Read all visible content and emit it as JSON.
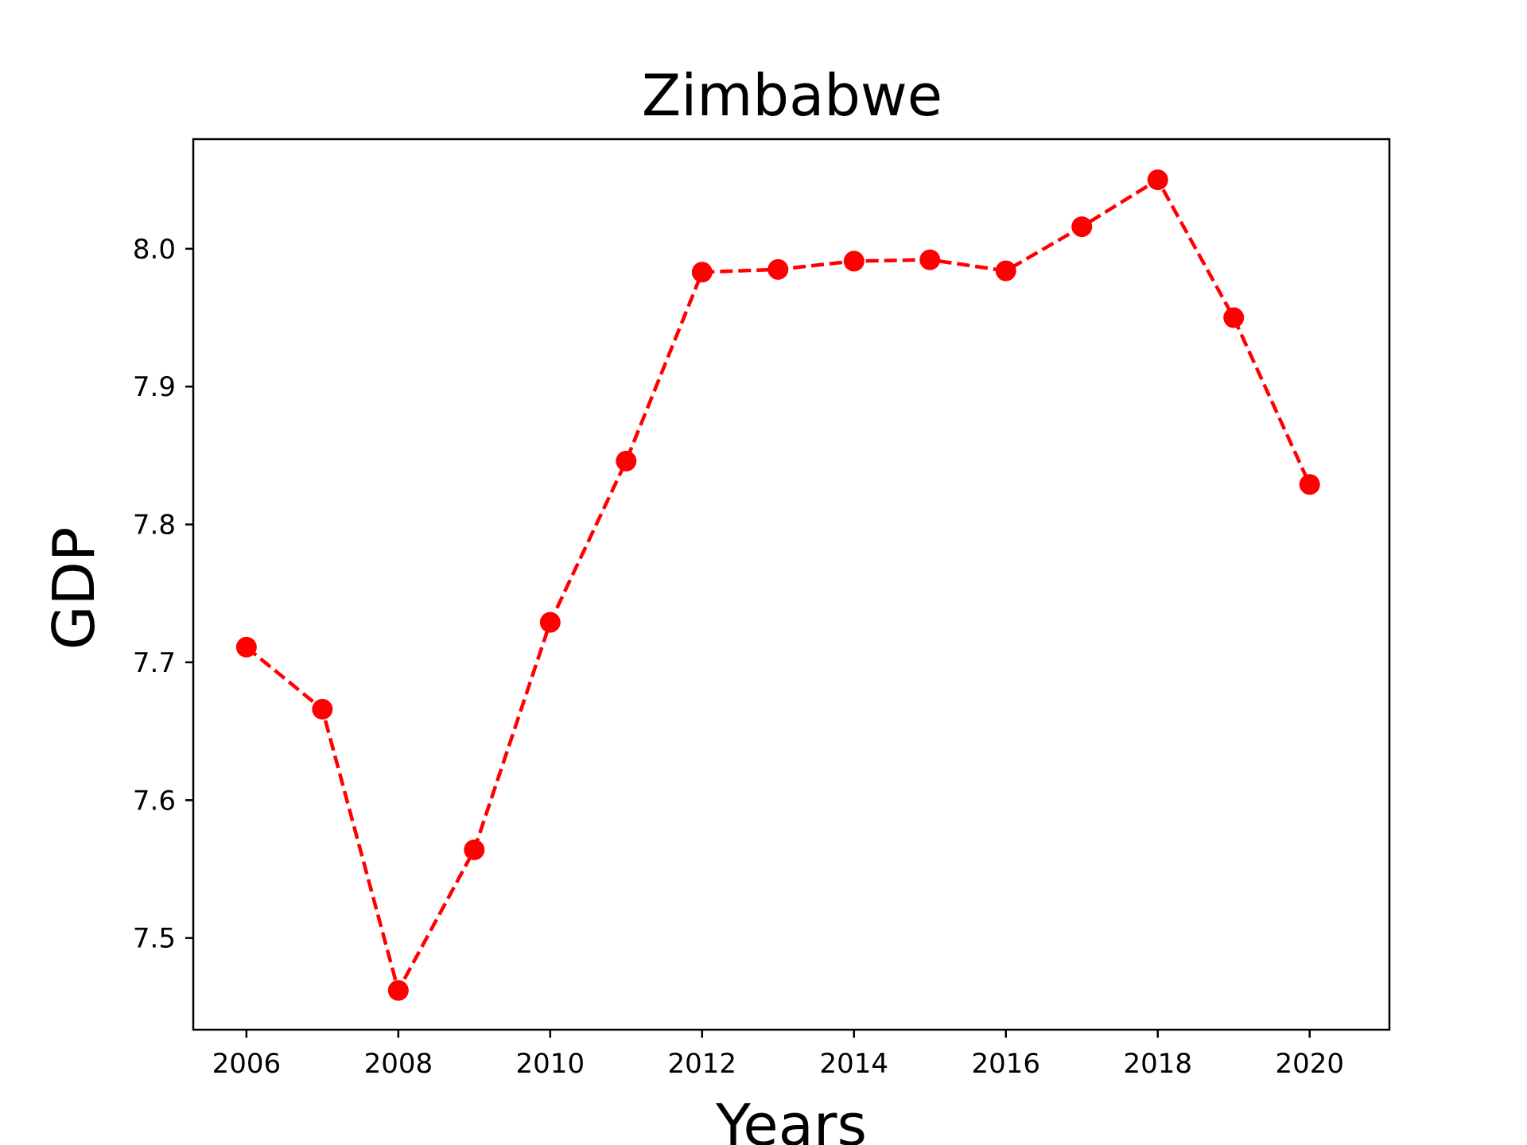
{
  "chart_data": {
    "type": "line",
    "title": "Zimbabwe",
    "xlabel": "Years",
    "ylabel": "GDP",
    "x": [
      2006,
      2007,
      2008,
      2009,
      2010,
      2011,
      2012,
      2013,
      2014,
      2015,
      2016,
      2017,
      2018,
      2019,
      2020
    ],
    "series": [
      {
        "values": [
          7.711,
          7.666,
          7.462,
          7.564,
          7.729,
          7.846,
          7.983,
          7.985,
          7.991,
          7.992,
          7.984,
          8.016,
          8.05,
          7.95,
          7.829
        ],
        "color": "#ff0000",
        "line_style": "dashed",
        "marker": "circle"
      }
    ],
    "xlim": [
      2005.3,
      2021.05
    ],
    "ylim": [
      7.4335,
      8.0795
    ],
    "xticks": [
      2006,
      2008,
      2010,
      2012,
      2014,
      2016,
      2018,
      2020
    ],
    "xtick_labels": [
      "2006",
      "2008",
      "2010",
      "2012",
      "2014",
      "2016",
      "2018",
      "2020"
    ],
    "yticks": [
      7.5,
      7.6,
      7.7,
      7.8,
      7.9,
      8.0
    ],
    "ytick_labels": [
      "7.5",
      "7.6",
      "7.7",
      "7.8",
      "7.9",
      "8.0"
    ],
    "grid": false,
    "legend": "none"
  }
}
